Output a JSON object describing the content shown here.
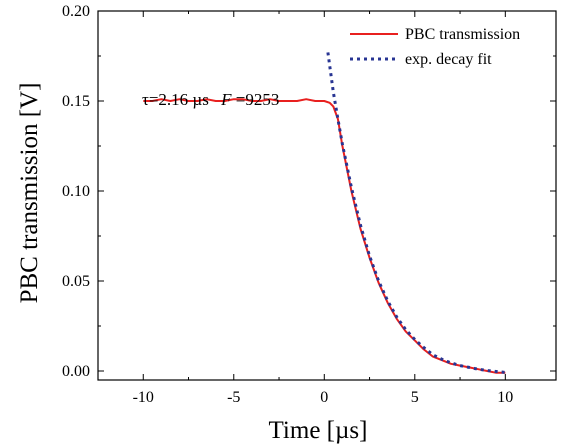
{
  "chart_data": {
    "type": "line",
    "xlabel": "Time [µs]",
    "ylabel": "PBC transmission [V]",
    "xlim": [
      -12.5,
      12.8
    ],
    "ylim": [
      -0.005,
      0.2
    ],
    "x_ticks": [
      -10,
      -5,
      0,
      5,
      10
    ],
    "x_tick_labels": [
      "-10",
      "-5",
      "0",
      "5",
      "10"
    ],
    "y_ticks": [
      0.0,
      0.05,
      0.1,
      0.15,
      0.2
    ],
    "y_tick_labels": [
      "0.00",
      "0.05",
      "0.10",
      "0.15",
      "0.20"
    ],
    "grid": false,
    "legend_position": "top-right",
    "annotation": {
      "tau_text": "τ=2.16 µs",
      "f_label": "F",
      "f_value": "=9253"
    },
    "series": [
      {
        "name": "PBC transmission",
        "color": "#e8201f",
        "style": "solid",
        "x": [
          -10,
          -9.5,
          -9,
          -8.5,
          -8,
          -7.5,
          -7,
          -6.5,
          -6,
          -5.5,
          -5,
          -4.5,
          -4,
          -3.5,
          -3,
          -2.5,
          -2,
          -1.5,
          -1,
          -0.5,
          0,
          0.3,
          0.5,
          0.75,
          1,
          1.5,
          2,
          2.5,
          3,
          3.5,
          4,
          4.5,
          5,
          5.5,
          6,
          6.5,
          7,
          7.5,
          8,
          8.5,
          9,
          9.5,
          10
        ],
        "values": [
          0.15,
          0.15,
          0.151,
          0.15,
          0.151,
          0.15,
          0.15,
          0.151,
          0.15,
          0.15,
          0.151,
          0.151,
          0.15,
          0.15,
          0.151,
          0.15,
          0.15,
          0.15,
          0.151,
          0.15,
          0.15,
          0.149,
          0.147,
          0.14,
          0.125,
          0.1,
          0.079,
          0.063,
          0.049,
          0.038,
          0.029,
          0.022,
          0.017,
          0.012,
          0.008,
          0.006,
          0.004,
          0.003,
          0.002,
          0.001,
          0.0,
          -0.001,
          -0.001
        ]
      },
      {
        "name": "exp. decay fit",
        "color": "#283593",
        "style": "dotted",
        "x": [
          0.2,
          0.5,
          0.75,
          1,
          1.5,
          2,
          2.5,
          3,
          3.5,
          4,
          4.5,
          5,
          5.5,
          6,
          6.5,
          7,
          7.5,
          8,
          8.5,
          9,
          9.5,
          10
        ],
        "values": [
          0.177,
          0.155,
          0.14,
          0.126,
          0.102,
          0.081,
          0.064,
          0.05,
          0.039,
          0.03,
          0.023,
          0.0175,
          0.013,
          0.009,
          0.0065,
          0.0045,
          0.003,
          0.002,
          0.001,
          0.0003,
          -0.0003,
          -0.0008
        ]
      }
    ]
  }
}
